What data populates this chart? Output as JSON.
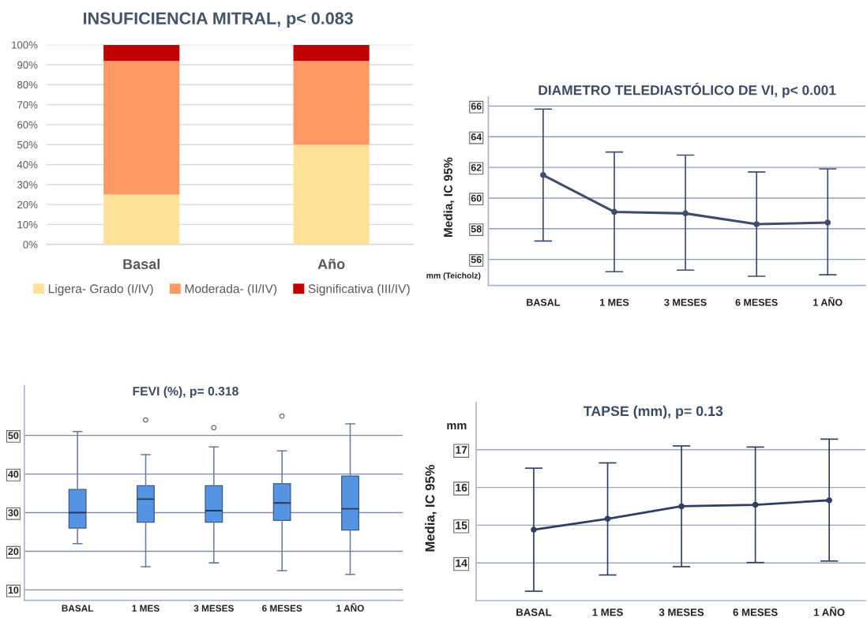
{
  "chart_data": [
    {
      "type": "bar",
      "title": "INSUFICIENCIA MITRAL, p< 0.083",
      "categories": [
        "Basal",
        "Año"
      ],
      "stacked": true,
      "series": [
        {
          "name": "Ligera- Grado (I/IV)",
          "color": "#fde298",
          "values": [
            25,
            50
          ]
        },
        {
          "name": "Moderada- (II/IV)",
          "color": "#fe9966",
          "values": [
            67,
            42
          ]
        },
        {
          "name": "Significativa (III/IV)",
          "color": "#c00000",
          "values": [
            8,
            8
          ]
        }
      ],
      "ylim": [
        0,
        100
      ],
      "yticks": [
        {
          "value": 0,
          "label": "0%"
        },
        {
          "value": 10,
          "label": "10%"
        },
        {
          "value": 20,
          "label": "20%"
        },
        {
          "value": 30,
          "label": "30%"
        },
        {
          "value": 40,
          "label": "40%"
        },
        {
          "value": 50,
          "label": "50%"
        },
        {
          "value": 60,
          "label": "60%"
        },
        {
          "value": 70,
          "label": "70%"
        },
        {
          "value": 80,
          "label": "80%"
        },
        {
          "value": 90,
          "label": "90%"
        },
        {
          "value": 100,
          "label": "100%"
        }
      ],
      "grid": "y",
      "legend": "bottom"
    },
    {
      "type": "line",
      "title": "DIAMETRO TELEDIASTÓLICO DE VI, p< 0.001",
      "ylabel": "Media, IC 95%",
      "annotations": [
        "mm (Teicholz)"
      ],
      "categories": [
        "BASAL",
        "1 MES",
        "3 MESES",
        "6 MESES",
        "1 AÑO"
      ],
      "series": [
        {
          "color": "#3e4c6d",
          "values": [
            61.5,
            59.1,
            59.0,
            58.3,
            58.4
          ],
          "errors": [
            [
              57.2,
              65.8
            ],
            [
              55.2,
              63.0
            ],
            [
              55.3,
              62.8
            ],
            [
              54.9,
              61.7
            ],
            [
              55.0,
              61.9
            ]
          ]
        }
      ],
      "ylim": [
        54.3,
        66.6
      ],
      "yticks": [
        56,
        58,
        60,
        62,
        64,
        66
      ],
      "grid": "y",
      "marker": "circle"
    },
    {
      "type": "box",
      "title": "FEVI (%), p= 0.318",
      "categories": [
        "BASAL",
        "1 MES",
        "3 MESES",
        "6 MESES",
        "1 AÑO"
      ],
      "series": [
        {
          "color": "#5594e3",
          "boxes": [
            {
              "low": 22,
              "q1": 26,
              "median": 30,
              "q3": 36,
              "high": 51
            },
            {
              "low": 16,
              "q1": 27.5,
              "median": 33.5,
              "q3": 37,
              "high": 45,
              "outliers": [
                54
              ]
            },
            {
              "low": 17,
              "q1": 27.5,
              "median": 30.5,
              "q3": 37,
              "high": 47,
              "outliers": [
                52
              ]
            },
            {
              "low": 15,
              "q1": 28,
              "median": 32.5,
              "q3": 37.5,
              "high": 46,
              "outliers": [
                55
              ]
            },
            {
              "low": 14,
              "q1": 25.5,
              "median": 31,
              "q3": 39.5,
              "high": 53
            }
          ]
        }
      ],
      "ylim": [
        7.3,
        62.9
      ],
      "yticks": [
        10,
        20,
        30,
        40,
        50
      ],
      "grid": "y"
    },
    {
      "type": "line",
      "title": "TAPSE (mm), p= 0.13",
      "ylabel": "Media, IC 95%",
      "annotations": [
        "mm"
      ],
      "categories": [
        "BASAL",
        "1 MES",
        "3 MESES",
        "6 MESES",
        "1 AÑO"
      ],
      "series": [
        {
          "color": "#2f3e62",
          "values": [
            14.88,
            15.17,
            15.5,
            15.54,
            15.66
          ],
          "errors": [
            [
              13.25,
              16.51
            ],
            [
              13.68,
              16.65
            ],
            [
              13.9,
              17.1
            ],
            [
              14.01,
              17.07
            ],
            [
              14.05,
              17.28
            ]
          ]
        }
      ],
      "ylim": [
        13.0,
        18.25
      ],
      "yticks": [
        14,
        15,
        16,
        17
      ],
      "grid": "y",
      "marker": "circle"
    }
  ]
}
